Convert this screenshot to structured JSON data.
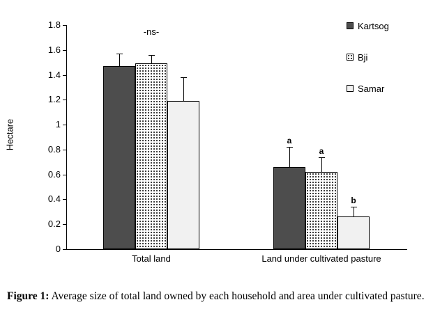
{
  "chart_data": {
    "type": "bar",
    "title": "",
    "xlabel": "",
    "ylabel": "Hectare",
    "ylim": [
      0,
      1.8
    ],
    "ytick_labels": [
      "0",
      "0.2",
      "0.4",
      "0.6",
      "0.8",
      "1",
      "1.2",
      "1.4",
      "1.6",
      "1.8"
    ],
    "grid": false,
    "legend_position": "top-right",
    "categories": [
      "Total land",
      "Land under cultivated pasture"
    ],
    "series": [
      {
        "name": "Kartsog",
        "values": [
          1.47,
          0.66
        ],
        "errors": [
          0.1,
          0.16
        ],
        "letters": [
          "",
          "a"
        ],
        "color": "#4d4d4d",
        "pattern": "dark"
      },
      {
        "name": "Bji",
        "values": [
          1.49,
          0.62
        ],
        "errors": [
          0.07,
          0.12
        ],
        "letters": [
          "",
          "a"
        ],
        "color": "#ffffff",
        "pattern": "dots"
      },
      {
        "name": "Samar",
        "values": [
          1.19,
          0.26
        ],
        "errors": [
          0.19,
          0.08
        ],
        "letters": [
          "",
          "b"
        ],
        "color": "#f1f1f1",
        "pattern": "light"
      }
    ],
    "annotations": [
      {
        "text": "-ns-",
        "category_index": 0
      }
    ]
  },
  "caption": {
    "label": "Figure 1:",
    "text": "Average size of total land owned by each household and area under cultivated pasture."
  }
}
